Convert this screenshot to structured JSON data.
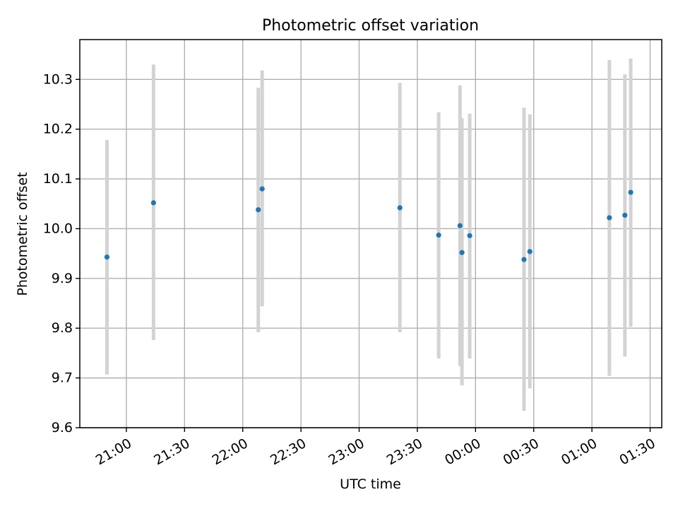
{
  "chart_data": {
    "type": "scatter",
    "title": "Photometric offset variation",
    "xlabel": "UTC time",
    "ylabel": "Photometric offset",
    "x_axis_type": "time",
    "xlim": [
      "20:36",
      "01:36"
    ],
    "ylim": [
      9.6,
      10.38
    ],
    "grid": true,
    "x_ticks": [
      "21:00",
      "21:30",
      "22:00",
      "22:30",
      "23:00",
      "23:30",
      "00:00",
      "00:30",
      "01:00",
      "01:30"
    ],
    "y_ticks": [
      "9.6",
      "9.7",
      "9.8",
      "9.9",
      "10.0",
      "10.1",
      "10.2",
      "10.3"
    ],
    "point_color": "#1f77b4",
    "errorbar_color": "#d3d3d3",
    "points": [
      {
        "x": "20:50",
        "y": 9.943,
        "ymin": 9.707,
        "ymax": 10.178
      },
      {
        "x": "21:14",
        "y": 10.052,
        "ymin": 9.776,
        "ymax": 10.33
      },
      {
        "x": "22:08",
        "y": 10.038,
        "ymin": 9.792,
        "ymax": 10.283
      },
      {
        "x": "22:10",
        "y": 10.08,
        "ymin": 9.844,
        "ymax": 10.318
      },
      {
        "x": "23:21",
        "y": 10.042,
        "ymin": 9.792,
        "ymax": 10.293
      },
      {
        "x": "23:41",
        "y": 9.987,
        "ymin": 9.739,
        "ymax": 10.234
      },
      {
        "x": "23:52",
        "y": 10.006,
        "ymin": 9.724,
        "ymax": 10.288
      },
      {
        "x": "23:53",
        "y": 9.952,
        "ymin": 9.685,
        "ymax": 10.222
      },
      {
        "x": "23:57",
        "y": 9.986,
        "ymin": 9.739,
        "ymax": 10.231
      },
      {
        "x": "00:25",
        "y": 9.938,
        "ymin": 9.634,
        "ymax": 10.243
      },
      {
        "x": "00:28",
        "y": 9.954,
        "ymin": 9.679,
        "ymax": 10.23
      },
      {
        "x": "01:09",
        "y": 10.022,
        "ymin": 9.704,
        "ymax": 10.339
      },
      {
        "x": "01:17",
        "y": 10.027,
        "ymin": 9.743,
        "ymax": 10.31
      },
      {
        "x": "01:20",
        "y": 10.073,
        "ymin": 9.803,
        "ymax": 10.342
      }
    ]
  }
}
